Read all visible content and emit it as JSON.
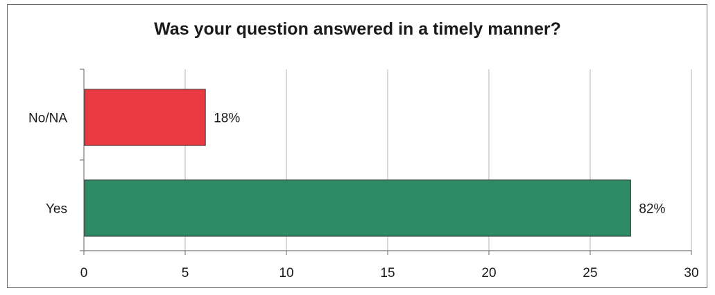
{
  "chart_data": {
    "type": "bar",
    "orientation": "horizontal",
    "title": "Was your question answered in a timely manner?",
    "categories": [
      "Yes",
      "No/NA"
    ],
    "values": [
      27,
      6
    ],
    "data_labels": [
      "82%",
      "18%"
    ],
    "colors": [
      "#2e8b63",
      "#e83a40"
    ],
    "xlim": [
      0,
      30
    ],
    "xticks": [
      0,
      5,
      10,
      15,
      20,
      25,
      30
    ],
    "grid": "vertical",
    "legend": "none",
    "xlabel": "",
    "ylabel": ""
  }
}
